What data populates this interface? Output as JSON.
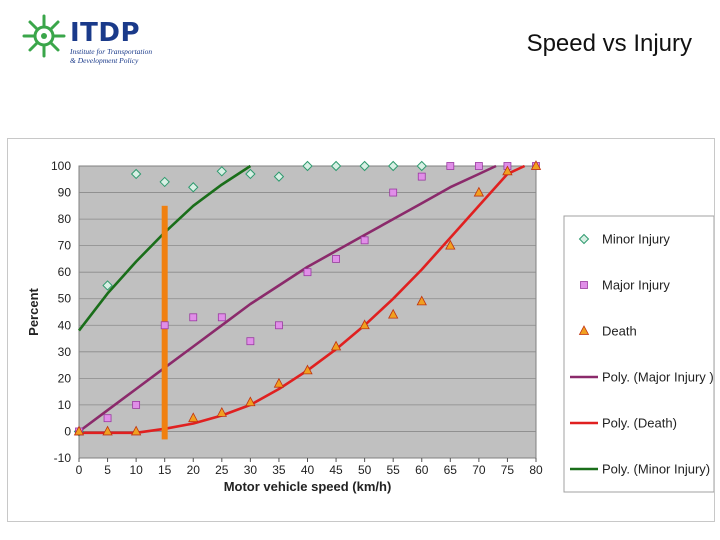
{
  "slide": {
    "title": "Speed vs Injury",
    "logo_text": "ITDP",
    "logo_sub_line1": "Institute for Transportation",
    "logo_sub_line2": "& Development Policy",
    "logo_color": "#1a3a8a",
    "logo_icon": "green-starburst-icon"
  },
  "chart_data": {
    "type": "scatter",
    "xlabel": "Motor vehicle speed (km/h)",
    "ylabel": "Percent",
    "xlim": [
      0,
      80
    ],
    "ylim": [
      -10,
      100
    ],
    "x_ticks": [
      0,
      5,
      10,
      15,
      20,
      25,
      30,
      35,
      40,
      45,
      50,
      55,
      60,
      65,
      70,
      75,
      80
    ],
    "y_ticks": [
      -10,
      0,
      10,
      20,
      30,
      40,
      50,
      60,
      70,
      80,
      90,
      100
    ],
    "plot_background": "#c0c0c0",
    "grid": "horizontal",
    "legend_position": "right",
    "series": [
      {
        "name": "Minor Injury",
        "marker": "diamond",
        "color": "#2e9a6e",
        "x": [
          0,
          5,
          10,
          15,
          20,
          25,
          30,
          35,
          40,
          45,
          50,
          55,
          60
        ],
        "y": [
          0,
          55,
          97,
          94,
          92,
          98,
          97,
          96,
          100,
          100,
          100,
          100,
          100
        ]
      },
      {
        "name": "Major Injury",
        "marker": "square",
        "color": "#e08ee8",
        "x": [
          0,
          5,
          10,
          15,
          20,
          25,
          30,
          35,
          40,
          45,
          50,
          55,
          60,
          65,
          70,
          75,
          80
        ],
        "y": [
          0,
          5,
          10,
          40,
          43,
          43,
          34,
          40,
          60,
          65,
          72,
          90,
          96,
          100,
          100,
          100,
          100
        ]
      },
      {
        "name": "Death",
        "marker": "triangle",
        "color": "#f0a020",
        "x": [
          0,
          5,
          10,
          20,
          25,
          30,
          35,
          40,
          45,
          50,
          55,
          60,
          65,
          70,
          75,
          80
        ],
        "y": [
          0,
          0,
          0,
          5,
          7,
          11,
          18,
          23,
          32,
          40,
          44,
          49,
          70,
          90,
          98,
          100
        ]
      }
    ],
    "trendlines": [
      {
        "name": "Poly. (Major Injury )",
        "color": "#8b2a6b",
        "x": [
          0,
          5,
          10,
          15,
          20,
          25,
          30,
          35,
          40,
          45,
          50,
          55,
          60,
          65,
          70,
          73
        ],
        "y": [
          0,
          8,
          16,
          24,
          32,
          40,
          48,
          55,
          62,
          68,
          74,
          80,
          86,
          92,
          97,
          100
        ]
      },
      {
        "name": "Poly. (Death)",
        "color": "#e02020",
        "x": [
          0,
          5,
          10,
          15,
          20,
          25,
          30,
          35,
          40,
          45,
          50,
          55,
          60,
          65,
          70,
          75,
          78
        ],
        "y": [
          -0.5,
          -0.5,
          -0.5,
          1,
          3,
          6,
          10,
          16,
          23,
          31,
          40,
          50,
          61,
          73,
          85,
          97,
          100
        ]
      },
      {
        "name": "Poly. (Minor Injury)",
        "color": "#1a6e1a",
        "x": [
          0,
          5,
          10,
          15,
          20,
          25,
          30
        ],
        "y": [
          38,
          52,
          64,
          75,
          85,
          93,
          100
        ]
      }
    ],
    "annotation": {
      "type": "vertical-bar",
      "x": 15,
      "y_from": -3,
      "y_to": 85,
      "color": "#f08010"
    }
  }
}
